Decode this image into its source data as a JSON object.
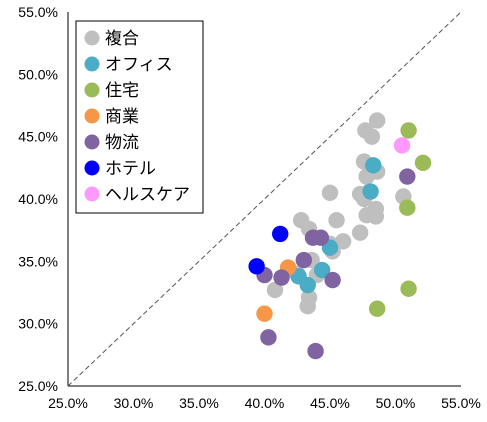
{
  "chart_data": {
    "type": "scatter",
    "title": "",
    "xlabel": "",
    "ylabel": "",
    "xlim": [
      25,
      55
    ],
    "ylim": [
      25,
      55
    ],
    "x_ticks": [
      "25.0%",
      "30.0%",
      "35.0%",
      "40.0%",
      "45.0%",
      "50.0%",
      "55.0%"
    ],
    "y_ticks": [
      "25.0%",
      "30.0%",
      "35.0%",
      "40.0%",
      "45.0%",
      "50.0%",
      "55.0%"
    ],
    "grid": false,
    "diagonal_reference_line": true,
    "legend_position": "top-left",
    "series": [
      {
        "name": "複合",
        "color": "#bfbfbf",
        "points": [
          [
            48.6,
            46.3
          ],
          [
            47.7,
            45.5
          ],
          [
            48.2,
            45.0
          ],
          [
            47.6,
            43.0
          ],
          [
            48.6,
            42.2
          ],
          [
            47.8,
            41.8
          ],
          [
            48.0,
            40.6
          ],
          [
            47.3,
            40.4
          ],
          [
            47.6,
            40.0
          ],
          [
            48.5,
            39.2
          ],
          [
            47.8,
            38.7
          ],
          [
            48.5,
            38.6
          ],
          [
            45.0,
            40.5
          ],
          [
            45.5,
            38.3
          ],
          [
            47.3,
            37.3
          ],
          [
            46.0,
            36.6
          ],
          [
            42.8,
            38.3
          ],
          [
            43.4,
            37.6
          ],
          [
            45.0,
            36.4
          ],
          [
            45.2,
            35.8
          ],
          [
            43.6,
            35.1
          ],
          [
            42.5,
            34.0
          ],
          [
            44.0,
            33.9
          ],
          [
            43.4,
            32.1
          ],
          [
            43.3,
            31.4
          ],
          [
            40.8,
            32.7
          ],
          [
            50.6,
            40.2
          ]
        ]
      },
      {
        "name": "オフィス",
        "color": "#4bacc6",
        "points": [
          [
            48.3,
            42.7
          ],
          [
            48.1,
            40.6
          ],
          [
            45.0,
            36.1
          ],
          [
            44.4,
            34.3
          ],
          [
            42.6,
            33.8
          ],
          [
            43.3,
            33.1
          ]
        ]
      },
      {
        "name": "住宅",
        "color": "#9bbb59",
        "points": [
          [
            51.0,
            45.5
          ],
          [
            52.1,
            42.9
          ],
          [
            50.9,
            39.3
          ],
          [
            51.0,
            32.8
          ],
          [
            48.6,
            31.2
          ]
        ]
      },
      {
        "name": "商業",
        "color": "#f79646",
        "points": [
          [
            41.8,
            34.5
          ],
          [
            40.0,
            30.8
          ]
        ]
      },
      {
        "name": "物流",
        "color": "#8064a2",
        "points": [
          [
            50.9,
            41.8
          ],
          [
            43.7,
            36.9
          ],
          [
            44.3,
            36.9
          ],
          [
            43.0,
            35.1
          ],
          [
            40.0,
            33.9
          ],
          [
            41.3,
            33.7
          ],
          [
            45.2,
            33.5
          ],
          [
            40.3,
            28.9
          ],
          [
            43.9,
            27.8
          ]
        ]
      },
      {
        "name": "ホテル",
        "color": "#0000ff",
        "points": [
          [
            41.2,
            37.2
          ],
          [
            39.4,
            34.6
          ]
        ]
      },
      {
        "name": "ヘルスケア",
        "color": "#ff99ff",
        "points": [
          [
            50.5,
            44.3
          ]
        ]
      }
    ]
  }
}
